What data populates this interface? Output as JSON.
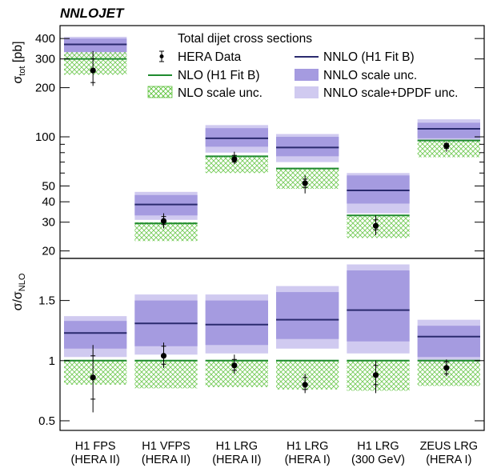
{
  "chart_data": {
    "type": "bar",
    "title": "NNLOJET",
    "subtitle": "Total dijet cross sections",
    "categories": [
      {
        "line1": "H1 FPS",
        "line2": "(HERA II)"
      },
      {
        "line1": "H1 VFPS",
        "line2": "(HERA II)"
      },
      {
        "line1": "H1 LRG",
        "line2": "(HERA II)"
      },
      {
        "line1": "H1 LRG",
        "line2": "(HERA I)"
      },
      {
        "line1": "H1 LRG",
        "line2": "(300 GeV)"
      },
      {
        "line1": "ZEUS LRG",
        "line2": "(HERA I)"
      }
    ],
    "legend": {
      "data": "HERA Data",
      "nlo": "NLO (H1 Fit B)",
      "nlo_scale": "NLO scale unc.",
      "nnlo": "NNLO (H1 Fit B)",
      "nnlo_scale": "NNLO scale unc.",
      "nnlo_scale_dpdf": "NNLO scale+DPDF unc."
    },
    "colors": {
      "nlo": "#1f8a2e",
      "nlo_hatch": "#5cc23a",
      "nnlo": "#2a2a6e",
      "nnlo_scale": "#a59be0",
      "nnlo_dpdf": "#d0caf0"
    },
    "top_panel": {
      "ylabel": "σ_tot [pb]",
      "yscale": "log",
      "ylim": [
        18,
        480
      ],
      "yticks": [
        20,
        30,
        40,
        50,
        100,
        200,
        300,
        400
      ],
      "series": {
        "nlo": [
          300,
          29.5,
          76,
          64,
          33,
          95
        ],
        "nlo_scale": [
          [
            240,
            330
          ],
          [
            23,
            30
          ],
          [
            60,
            76
          ],
          [
            48,
            64
          ],
          [
            24,
            33
          ],
          [
            75,
            95
          ]
        ],
        "nnlo": [
          368,
          38.5,
          98,
          86,
          47,
          112
        ],
        "nnlo_scale": [
          [
            330,
            400
          ],
          [
            33,
            44
          ],
          [
            87,
            113
          ],
          [
            76,
            100
          ],
          [
            39,
            58
          ],
          [
            98,
            122
          ]
        ],
        "nnlo_dpdf": [
          [
            310,
            410
          ],
          [
            31,
            46
          ],
          [
            80,
            118
          ],
          [
            70,
            104
          ],
          [
            34,
            60
          ],
          [
            93,
            128
          ]
        ],
        "data": [
          255,
          30.5,
          73,
          52,
          28.5,
          88
        ],
        "data_stat": [
          [
            215,
            300
          ],
          [
            29,
            32.5
          ],
          [
            70,
            77
          ],
          [
            49,
            55
          ],
          [
            27,
            31
          ],
          [
            85,
            91
          ]
        ],
        "data_tot": [
          [
            205,
            335
          ],
          [
            27.5,
            34
          ],
          [
            68,
            81
          ],
          [
            45,
            58
          ],
          [
            25,
            33
          ],
          [
            81,
            93
          ]
        ]
      }
    },
    "bottom_panel": {
      "ylabel": "σ/σ_NLO",
      "ylim": [
        0.42,
        1.85
      ],
      "yticks": [
        0.5,
        1,
        1.5
      ],
      "series": {
        "nlo": [
          1,
          1,
          1,
          1,
          1,
          1
        ],
        "nlo_scale": [
          [
            0.8,
            1.0
          ],
          [
            0.77,
            1.0
          ],
          [
            0.78,
            1.0
          ],
          [
            0.76,
            1.0
          ],
          [
            0.75,
            1.0
          ],
          [
            0.79,
            1.0
          ]
        ],
        "nnlo": [
          1.23,
          1.31,
          1.3,
          1.34,
          1.42,
          1.2
        ],
        "nnlo_scale": [
          [
            1.1,
            1.33
          ],
          [
            1.12,
            1.5
          ],
          [
            1.13,
            1.5
          ],
          [
            1.18,
            1.57
          ],
          [
            1.16,
            1.75
          ],
          [
            1.03,
            1.29
          ]
        ],
        "nnlo_dpdf": [
          [
            1.03,
            1.37
          ],
          [
            1.05,
            1.55
          ],
          [
            1.06,
            1.55
          ],
          [
            1.1,
            1.62
          ],
          [
            1.06,
            1.8
          ],
          [
            0.97,
            1.34
          ]
        ],
        "data": [
          0.86,
          1.04,
          0.96,
          0.8,
          0.88,
          0.94
        ],
        "data_stat": [
          [
            0.68,
            1.04
          ],
          [
            0.97,
            1.12
          ],
          [
            0.92,
            1.01
          ],
          [
            0.76,
            0.86
          ],
          [
            0.8,
            0.96
          ],
          [
            0.89,
            0.99
          ]
        ],
        "data_tot": [
          [
            0.57,
            1.13
          ],
          [
            0.94,
            1.15
          ],
          [
            0.89,
            1.05
          ],
          [
            0.73,
            0.89
          ],
          [
            0.73,
            1.0
          ],
          [
            0.87,
            1.01
          ]
        ]
      }
    }
  }
}
